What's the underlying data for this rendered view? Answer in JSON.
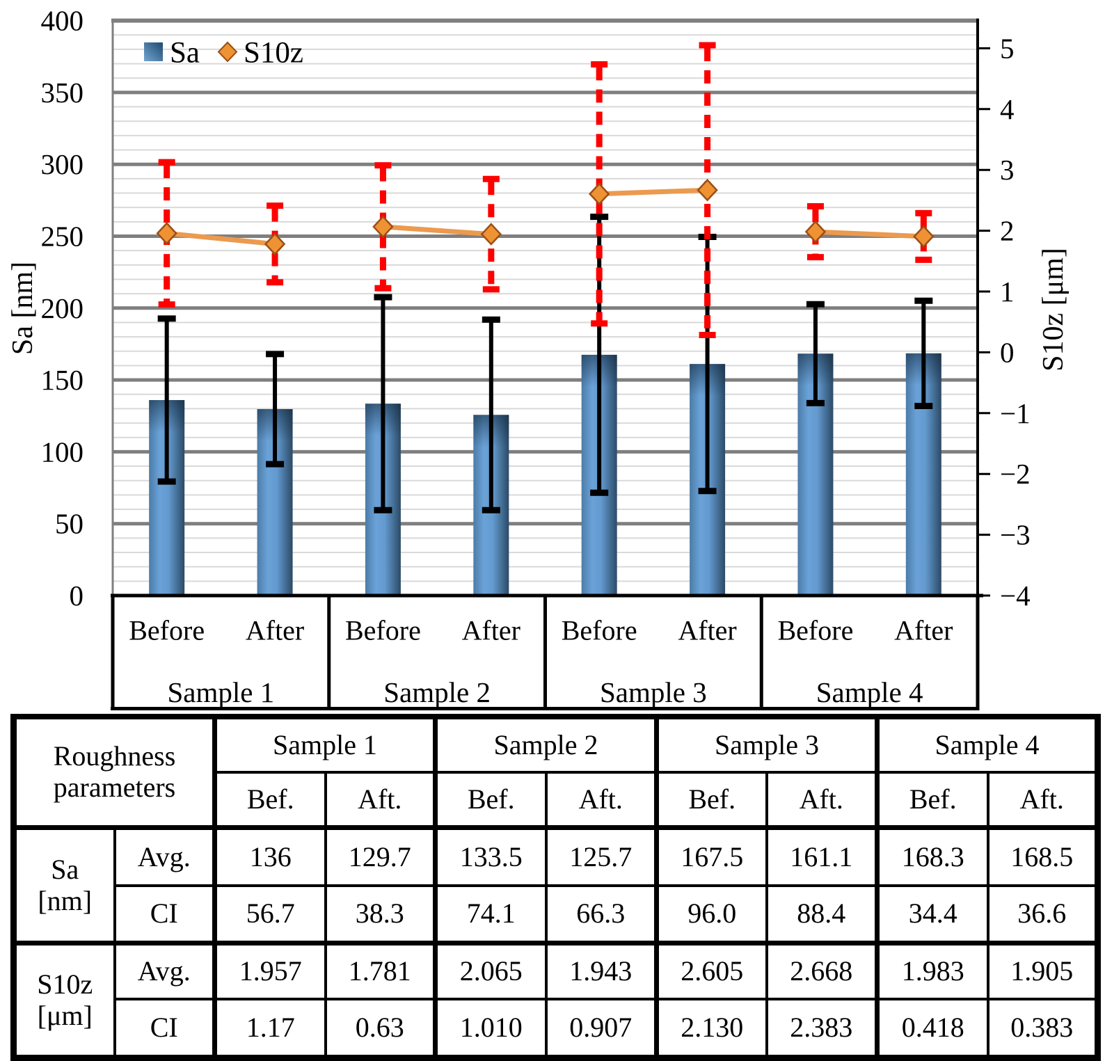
{
  "chart_data": {
    "type": "bar",
    "subtype": "bar-line-combo",
    "categories": [
      "Before",
      "After"
    ],
    "groups": [
      "Sample 1",
      "Sample 2",
      "Sample 3",
      "Sample 4"
    ],
    "series": [
      {
        "name": "Sa",
        "chart": "bar",
        "axis": "left",
        "unit": "nm",
        "values": [
          136,
          129.7,
          133.5,
          125.7,
          167.5,
          161.1,
          168.3,
          168.5
        ],
        "ci": [
          56.7,
          38.3,
          74.1,
          66.3,
          96.0,
          88.4,
          34.4,
          36.6
        ]
      },
      {
        "name": "S10z",
        "chart": "line",
        "axis": "right",
        "unit": "μm",
        "values": [
          1.957,
          1.781,
          2.065,
          1.943,
          2.605,
          2.668,
          1.983,
          1.905
        ],
        "ci": [
          1.17,
          0.63,
          1.01,
          0.907,
          2.13,
          2.383,
          0.418,
          0.383
        ]
      }
    ],
    "left_axis": {
      "title": "Sa [nm]",
      "min": 0,
      "max": 400,
      "major_step": 50,
      "minor_step": 10,
      "tick_labels": [
        "0",
        "50",
        "100",
        "150",
        "200",
        "250",
        "300",
        "350",
        "400"
      ]
    },
    "right_axis": {
      "title": "S10z [μm]",
      "min": -4,
      "max": 5,
      "step": 1,
      "tick_labels": [
        "5",
        "4",
        "3",
        "2",
        "1",
        "0",
        "−1",
        "−2",
        "−3",
        "−4"
      ]
    },
    "legend": [
      {
        "label": "Sa",
        "marker": "square"
      },
      {
        "label": "S10z",
        "marker": "diamond"
      }
    ],
    "grid": {
      "major": true,
      "minor": true
    },
    "colors": {
      "bar_light": "#6aa2d8",
      "bar_mid": "#4c7ca8",
      "bar_dark": "#2c4a66",
      "marker_fill": "#ef9233",
      "marker_edge": "#9a4f16",
      "line_orange": "#eb9a4f",
      "sa_error": "#000000",
      "s10z_error": "#fe0000",
      "grid_major": "#7f7f7f",
      "grid_minor": "#d9d9d9",
      "axis_black": "#000000"
    }
  },
  "table": {
    "corner_label": "Roughness parameters",
    "sample_headers": [
      "Sample 1",
      "Sample 2",
      "Sample 3",
      "Sample 4"
    ],
    "period_headers": [
      "Bef.",
      "Aft.",
      "Bef.",
      "Aft.",
      "Bef.",
      "Aft.",
      "Bef.",
      "Aft."
    ],
    "row_groups": [
      {
        "param": "Sa",
        "unit": "[nm]",
        "rows": [
          {
            "label": "Avg.",
            "values": [
              "136",
              "129.7",
              "133.5",
              "125.7",
              "167.5",
              "161.1",
              "168.3",
              "168.5"
            ]
          },
          {
            "label": "CI",
            "values": [
              "56.7",
              "38.3",
              "74.1",
              "66.3",
              "96.0",
              "88.4",
              "34.4",
              "36.6"
            ]
          }
        ]
      },
      {
        "param": "S10z",
        "unit": "[μm]",
        "rows": [
          {
            "label": "Avg.",
            "values": [
              "1.957",
              "1.781",
              "2.065",
              "1.943",
              "2.605",
              "2.668",
              "1.983",
              "1.905"
            ]
          },
          {
            "label": "CI",
            "values": [
              "1.17",
              "0.63",
              "1.010",
              "0.907",
              "2.130",
              "2.383",
              "0.418",
              "0.383"
            ]
          }
        ]
      }
    ]
  }
}
